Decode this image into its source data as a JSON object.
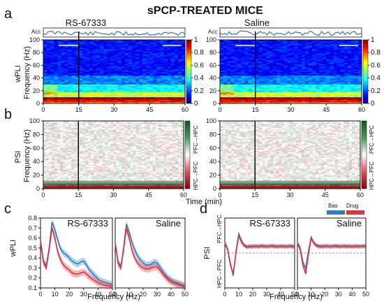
{
  "figure_title": "sPCP-TREATED MICE",
  "panel_labels": [
    "a",
    "b",
    "c",
    "d"
  ],
  "conditions": [
    "RS-67333",
    "Saline"
  ],
  "acc_label": "Acc",
  "colors": {
    "baseline": "#2f7fc0",
    "drug": "#e0313c",
    "dashed_line": "#999999",
    "acc_trace": "#1f6fae"
  },
  "chart_data": [
    {
      "id": "a",
      "type": "heatmap",
      "title": "",
      "ylabel": "wPLI\nFrequency (Hz)",
      "xlabel": "",
      "xlim": [
        0,
        60
      ],
      "ylim": [
        0,
        100
      ],
      "xticks": [
        0,
        15,
        30,
        45,
        60
      ],
      "yticks": [
        0,
        20,
        40,
        60,
        80,
        100
      ],
      "event_marker_x": 15,
      "colorbar": {
        "range": [
          0,
          1
        ],
        "ticks": [
          0,
          0.2,
          0.4,
          0.6,
          0.8,
          1
        ],
        "tick_labels": [
          "0",
          "0.2",
          "0.4",
          "0.6",
          "0.8",
          "1"
        ],
        "colormap": "jet"
      },
      "panels": [
        "RS-67333",
        "Saline"
      ]
    },
    {
      "id": "b",
      "type": "heatmap",
      "ylabel": "PSI\nFrequency (Hz)",
      "xlabel": "Time (min)",
      "xlim": [
        0,
        60
      ],
      "ylim": [
        0,
        100
      ],
      "xticks": [
        0,
        15,
        30,
        45,
        60
      ],
      "yticks": [
        0,
        20,
        40,
        60,
        80,
        100
      ],
      "event_marker_x": 15,
      "colorbar": {
        "top_label": "PFC→HPC",
        "bottom_label": "HPC→PFC",
        "colormap": "red-white-green"
      },
      "panels": [
        "RS-67333",
        "Saline"
      ]
    },
    {
      "id": "c",
      "type": "line",
      "ylabel": "wPLI",
      "xlabel": "Frequency (Hz)",
      "xlim": [
        0,
        50
      ],
      "ylim": [
        0.1,
        0.8
      ],
      "xticks": [
        0,
        10,
        20,
        30,
        40,
        50
      ],
      "yticks": [
        0.1,
        0.2,
        0.3,
        0.4,
        0.5,
        0.6,
        0.7,
        0.8
      ],
      "x": [
        0,
        2,
        4,
        6,
        8,
        10,
        12,
        14,
        16,
        18,
        20,
        22,
        24,
        26,
        28,
        30,
        32,
        34,
        36,
        38,
        40,
        42,
        44,
        46,
        48,
        50
      ],
      "panels": [
        {
          "name": "RS-67333",
          "series": [
            {
              "name": "Bas",
              "values": [
                0.58,
                0.37,
                0.32,
                0.5,
                0.76,
                0.68,
                0.58,
                0.49,
                0.45,
                0.43,
                0.4,
                0.37,
                0.35,
                0.34,
                0.36,
                0.37,
                0.33,
                0.28,
                0.25,
                0.22,
                0.19,
                0.17,
                0.16,
                0.15,
                0.14,
                0.13
              ]
            },
            {
              "name": "Drug",
              "values": [
                0.56,
                0.36,
                0.3,
                0.48,
                0.7,
                0.6,
                0.46,
                0.38,
                0.33,
                0.3,
                0.28,
                0.25,
                0.24,
                0.24,
                0.25,
                0.26,
                0.24,
                0.21,
                0.19,
                0.17,
                0.15,
                0.14,
                0.13,
                0.12,
                0.12,
                0.11
              ]
            }
          ]
        },
        {
          "name": "Saline",
          "series": [
            {
              "name": "Bas",
              "values": [
                0.56,
                0.36,
                0.31,
                0.5,
                0.74,
                0.66,
                0.56,
                0.48,
                0.42,
                0.38,
                0.35,
                0.33,
                0.33,
                0.34,
                0.36,
                0.35,
                0.31,
                0.27,
                0.23,
                0.2,
                0.18,
                0.16,
                0.15,
                0.14,
                0.13,
                0.12
              ]
            },
            {
              "name": "Drug",
              "values": [
                0.55,
                0.35,
                0.3,
                0.48,
                0.7,
                0.6,
                0.48,
                0.4,
                0.35,
                0.32,
                0.3,
                0.29,
                0.29,
                0.3,
                0.31,
                0.31,
                0.28,
                0.24,
                0.21,
                0.18,
                0.16,
                0.15,
                0.14,
                0.13,
                0.12,
                0.11
              ]
            }
          ]
        }
      ]
    },
    {
      "id": "d",
      "type": "line",
      "ylabel": "PSI",
      "ylabel_top": "PFC→HPC",
      "ylabel_bottom": "HPC→PFC",
      "xlabel": "Frequency (Hz)",
      "xlim": [
        0,
        50
      ],
      "ylim": [
        -1,
        1
      ],
      "xticks": [
        0,
        10,
        20,
        30,
        40,
        50
      ],
      "reference_line_y": 0,
      "legend": {
        "entries": [
          "Bas",
          "Drug"
        ],
        "position": "top-right"
      },
      "x": [
        0,
        2,
        4,
        6,
        8,
        10,
        12,
        14,
        16,
        18,
        20,
        22,
        24,
        26,
        28,
        30,
        32,
        34,
        36,
        38,
        40,
        42,
        44,
        46,
        48,
        50
      ],
      "panels": [
        {
          "name": "RS-67333",
          "series": [
            {
              "name": "Bas",
              "values": [
                0.3,
                0.12,
                -0.3,
                -0.65,
                0.05,
                0.55,
                0.35,
                0.22,
                0.18,
                0.2,
                0.19,
                0.2,
                0.19,
                0.21,
                0.2,
                0.19,
                0.2,
                0.21,
                0.2,
                0.19,
                0.2,
                0.2,
                0.19,
                0.2,
                0.2,
                0.19
              ]
            },
            {
              "name": "Drug",
              "values": [
                0.28,
                0.1,
                -0.35,
                -0.6,
                0.0,
                0.5,
                0.3,
                0.2,
                0.17,
                0.18,
                0.18,
                0.19,
                0.18,
                0.19,
                0.19,
                0.18,
                0.19,
                0.19,
                0.18,
                0.18,
                0.19,
                0.18,
                0.18,
                0.19,
                0.18,
                0.18
              ]
            }
          ]
        },
        {
          "name": "Saline",
          "series": [
            {
              "name": "Bas",
              "values": [
                0.3,
                0.15,
                -0.25,
                -0.45,
                0.05,
                0.45,
                0.3,
                0.22,
                0.2,
                0.19,
                0.2,
                0.2,
                0.19,
                0.2,
                0.21,
                0.2,
                0.19,
                0.2,
                0.2,
                0.2,
                0.19,
                0.2,
                0.2,
                0.19,
                0.2,
                0.2
              ]
            },
            {
              "name": "Drug",
              "values": [
                0.28,
                0.1,
                -0.35,
                -0.6,
                -0.05,
                0.42,
                0.28,
                0.2,
                0.18,
                0.18,
                0.19,
                0.19,
                0.18,
                0.19,
                0.19,
                0.18,
                0.19,
                0.19,
                0.18,
                0.19,
                0.18,
                0.19,
                0.18,
                0.19,
                0.19,
                0.18
              ]
            }
          ]
        }
      ]
    }
  ]
}
